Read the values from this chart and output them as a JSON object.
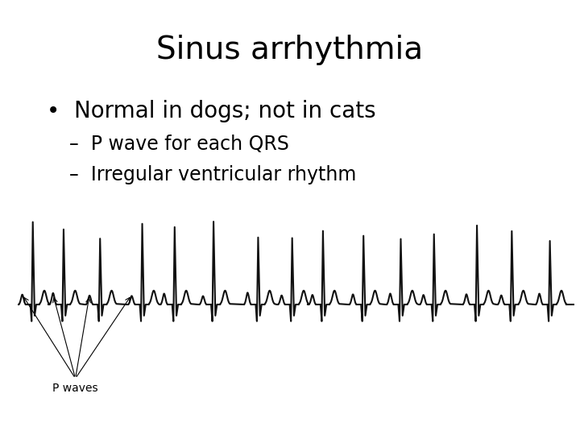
{
  "title": "Sinus arrhythmia",
  "bullet": "Normal in dogs; not in cats",
  "dash1": "P wave for each QRS",
  "dash2": "Irregular ventricular rhythm",
  "p_waves_label": "P waves",
  "bg_color": "#ffffff",
  "text_color": "#000000",
  "title_fontsize": 28,
  "bullet_fontsize": 20,
  "dash_fontsize": 17,
  "ecg_color": "#111111",
  "ecg_lw": 1.5
}
